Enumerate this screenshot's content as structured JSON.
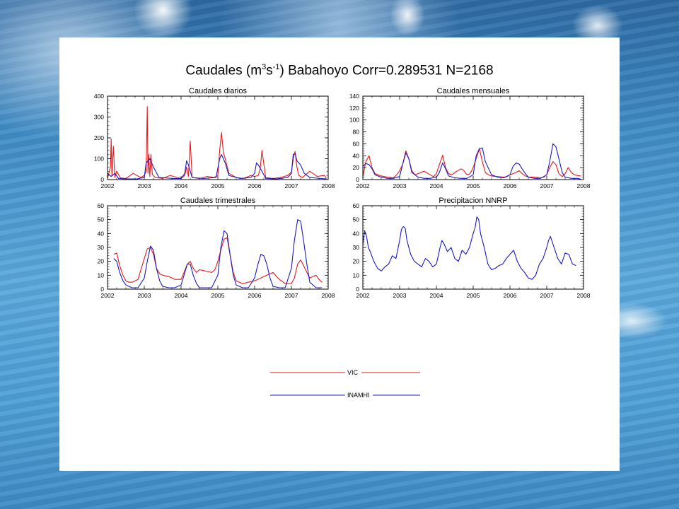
{
  "title": {
    "prefix": "Caudales (m",
    "sup1": "3",
    "mid": "s",
    "sup2": "-1",
    "suffix": ") Babahoyo Corr=0.289531 N=2168"
  },
  "colors": {
    "vic": "#e8191b",
    "inamhi": "#1a1ac8"
  },
  "legend": {
    "vic": "VIC",
    "inamhi": "INAMHI"
  },
  "chart_data": [
    {
      "type": "line",
      "title": "Caudales diarios",
      "xlim": [
        2002,
        2008
      ],
      "ylim": [
        0,
        400
      ],
      "xticks": [
        "2002",
        "2003",
        "2004",
        "2005",
        "2006",
        "2007",
        "2008"
      ],
      "yticks": [
        "0",
        "100",
        "200",
        "300",
        "400"
      ],
      "series": [
        {
          "name": "VIC",
          "x": [
            2002.0,
            2002.08,
            2002.1,
            2002.12,
            2002.16,
            2002.2,
            2002.25,
            2002.35,
            2002.5,
            2002.7,
            2002.9,
            2003.0,
            2003.05,
            2003.08,
            2003.1,
            2003.12,
            2003.15,
            2003.18,
            2003.22,
            2003.3,
            2003.5,
            2003.7,
            2003.9,
            2004.0,
            2004.1,
            2004.15,
            2004.2,
            2004.25,
            2004.3,
            2004.5,
            2004.7,
            2004.9,
            2005.0,
            2005.05,
            2005.1,
            2005.15,
            2005.2,
            2005.3,
            2005.5,
            2005.7,
            2005.9,
            2006.0,
            2006.1,
            2006.15,
            2006.2,
            2006.3,
            2006.5,
            2006.7,
            2006.9,
            2007.0,
            2007.05,
            2007.1,
            2007.15,
            2007.2,
            2007.3,
            2007.5,
            2007.7,
            2007.9,
            2007.95
          ],
          "y": [
            5,
            60,
            195,
            20,
            160,
            10,
            40,
            8,
            5,
            30,
            10,
            20,
            40,
            350,
            30,
            120,
            15,
            120,
            25,
            10,
            5,
            20,
            10,
            5,
            20,
            60,
            15,
            185,
            10,
            5,
            15,
            10,
            20,
            140,
            225,
            130,
            100,
            30,
            10,
            5,
            20,
            15,
            20,
            50,
            140,
            10,
            5,
            10,
            20,
            35,
            100,
            135,
            60,
            20,
            10,
            40,
            15,
            20,
            5
          ]
        },
        {
          "name": "INAMHI",
          "x": [
            2002.0,
            2002.1,
            2002.2,
            2002.3,
            2002.5,
            2002.8,
            2003.0,
            2003.05,
            2003.15,
            2003.25,
            2003.4,
            2003.8,
            2004.0,
            2004.1,
            2004.15,
            2004.2,
            2004.3,
            2004.6,
            2004.95,
            2005.05,
            2005.1,
            2005.2,
            2005.3,
            2005.6,
            2005.9,
            2006.0,
            2006.05,
            2006.1,
            2006.2,
            2006.3,
            2006.6,
            2006.9,
            2007.0,
            2007.05,
            2007.1,
            2007.15,
            2007.25,
            2007.35,
            2007.5,
            2007.8,
            2007.95
          ],
          "y": [
            30,
            15,
            30,
            5,
            3,
            3,
            10,
            80,
            100,
            60,
            10,
            5,
            5,
            30,
            90,
            70,
            10,
            5,
            10,
            100,
            120,
            80,
            20,
            5,
            10,
            30,
            80,
            70,
            40,
            5,
            3,
            10,
            30,
            120,
            125,
            90,
            70,
            30,
            10,
            5,
            3
          ]
        }
      ]
    },
    {
      "type": "line",
      "title": "Caudales mensuales",
      "xlim": [
        2002,
        2008
      ],
      "ylim": [
        0,
        140
      ],
      "xticks": [
        "2002",
        "2003",
        "2004",
        "2005",
        "2006",
        "2007",
        "2008"
      ],
      "yticks": [
        "0",
        "20",
        "40",
        "60",
        "80",
        "100",
        "120",
        "140"
      ],
      "series": [
        {
          "name": "VIC",
          "x": [
            2002.0,
            2002.08,
            2002.17,
            2002.25,
            2002.33,
            2002.42,
            2002.5,
            2002.67,
            2002.83,
            2002.92,
            2003.0,
            2003.08,
            2003.17,
            2003.25,
            2003.33,
            2003.42,
            2003.5,
            2003.67,
            2003.83,
            2003.92,
            2004.0,
            2004.08,
            2004.17,
            2004.25,
            2004.33,
            2004.42,
            2004.5,
            2004.67,
            2004.75,
            2004.83,
            2004.92,
            2005.0,
            2005.08,
            2005.17,
            2005.25,
            2005.33,
            2005.42,
            2005.5,
            2005.67,
            2005.83,
            2005.92,
            2006.0,
            2006.08,
            2006.17,
            2006.25,
            2006.33,
            2006.42,
            2006.5,
            2006.67,
            2006.83,
            2006.92,
            2007.0,
            2007.08,
            2007.17,
            2007.25,
            2007.33,
            2007.42,
            2007.5,
            2007.58,
            2007.67,
            2007.75,
            2007.92
          ],
          "y": [
            5,
            30,
            40,
            20,
            10,
            8,
            6,
            4,
            3,
            8,
            15,
            25,
            48,
            35,
            15,
            8,
            10,
            14,
            8,
            5,
            10,
            25,
            41,
            20,
            10,
            8,
            12,
            18,
            15,
            8,
            10,
            20,
            35,
            52,
            30,
            12,
            8,
            6,
            5,
            4,
            5,
            8,
            10,
            12,
            15,
            10,
            6,
            4,
            4,
            3,
            4,
            8,
            20,
            30,
            25,
            10,
            5,
            10,
            20,
            12,
            8,
            6
          ]
        },
        {
          "name": "INAMHI",
          "x": [
            2002.0,
            2002.08,
            2002.17,
            2002.25,
            2002.33,
            2002.5,
            2002.67,
            2002.83,
            2003.0,
            2003.08,
            2003.17,
            2003.25,
            2003.33,
            2003.5,
            2003.67,
            2003.83,
            2004.0,
            2004.08,
            2004.17,
            2004.25,
            2004.33,
            2004.5,
            2004.67,
            2004.83,
            2005.0,
            2005.08,
            2005.17,
            2005.25,
            2005.33,
            2005.5,
            2005.67,
            2005.83,
            2006.0,
            2006.08,
            2006.17,
            2006.25,
            2006.33,
            2006.42,
            2006.5,
            2006.67,
            2006.83,
            2007.0,
            2007.08,
            2007.17,
            2007.25,
            2007.33,
            2007.42,
            2007.5,
            2007.67,
            2007.83,
            2007.92
          ],
          "y": [
            22,
            27,
            25,
            18,
            8,
            4,
            2,
            2,
            5,
            25,
            45,
            35,
            12,
            4,
            2,
            2,
            4,
            12,
            28,
            18,
            6,
            3,
            2,
            2,
            8,
            40,
            52,
            53,
            30,
            8,
            4,
            3,
            8,
            22,
            28,
            26,
            18,
            10,
            4,
            2,
            2,
            8,
            30,
            60,
            55,
            35,
            12,
            4,
            2,
            2,
            1
          ]
        }
      ]
    },
    {
      "type": "line",
      "title": "Caudales trimestrales",
      "xlim": [
        2002,
        2008
      ],
      "ylim": [
        0,
        60
      ],
      "xticks": [
        "2002",
        "2003",
        "2004",
        "2005",
        "2006",
        "2007",
        "2008"
      ],
      "yticks": [
        "0",
        "10",
        "20",
        "30",
        "40",
        "50",
        "60"
      ],
      "series": [
        {
          "name": "VIC",
          "x": [
            2002.17,
            2002.25,
            2002.33,
            2002.42,
            2002.5,
            2002.58,
            2002.67,
            2002.83,
            2002.92,
            2003.0,
            2003.08,
            2003.17,
            2003.25,
            2003.33,
            2003.42,
            2003.5,
            2003.67,
            2003.83,
            2004.0,
            2004.08,
            2004.17,
            2004.25,
            2004.33,
            2004.42,
            2004.5,
            2004.67,
            2004.83,
            2004.92,
            2005.0,
            2005.08,
            2005.17,
            2005.25,
            2005.33,
            2005.42,
            2005.5,
            2005.67,
            2005.83,
            2006.0,
            2006.17,
            2006.33,
            2006.5,
            2006.67,
            2006.83,
            2007.0,
            2007.08,
            2007.17,
            2007.25,
            2007.33,
            2007.42,
            2007.5,
            2007.58,
            2007.67,
            2007.75,
            2007.83
          ],
          "y": [
            25,
            26,
            17,
            10,
            6,
            5,
            5,
            7,
            15,
            22,
            29,
            30,
            25,
            15,
            11,
            10,
            9,
            7,
            7,
            12,
            18,
            20,
            15,
            12,
            14,
            13,
            12,
            14,
            20,
            28,
            36,
            37,
            25,
            12,
            6,
            4,
            5,
            6,
            8,
            10,
            12,
            7,
            4,
            4,
            8,
            18,
            21,
            17,
            12,
            8,
            9,
            10,
            7,
            5
          ]
        },
        {
          "name": "INAMHI",
          "x": [
            2002.17,
            2002.25,
            2002.33,
            2002.42,
            2002.5,
            2002.58,
            2002.67,
            2002.83,
            2003.0,
            2003.08,
            2003.17,
            2003.25,
            2003.33,
            2003.42,
            2003.5,
            2003.67,
            2003.83,
            2004.0,
            2004.08,
            2004.17,
            2004.25,
            2004.33,
            2004.42,
            2004.5,
            2004.67,
            2004.83,
            2005.0,
            2005.08,
            2005.17,
            2005.25,
            2005.33,
            2005.42,
            2005.5,
            2005.67,
            2005.83,
            2006.0,
            2006.08,
            2006.17,
            2006.25,
            2006.33,
            2006.42,
            2006.5,
            2006.67,
            2006.83,
            2007.0,
            2007.08,
            2007.17,
            2007.25,
            2007.33,
            2007.42,
            2007.5,
            2007.67,
            2007.83
          ],
          "y": [
            22,
            20,
            12,
            6,
            3,
            2,
            1,
            1,
            8,
            20,
            31,
            28,
            15,
            6,
            2,
            1,
            1,
            3,
            10,
            18,
            18,
            10,
            4,
            1,
            1,
            1,
            10,
            30,
            42,
            40,
            25,
            10,
            3,
            1,
            1,
            8,
            17,
            25,
            24,
            18,
            8,
            2,
            1,
            1,
            15,
            35,
            50,
            49,
            35,
            18,
            5,
            1,
            1
          ]
        }
      ]
    },
    {
      "type": "line",
      "title": "Precipitacion NNRP",
      "xlim": [
        2002,
        2008
      ],
      "ylim": [
        0,
        60
      ],
      "xticks": [
        "2002",
        "2003",
        "2004",
        "2005",
        "2006",
        "2007",
        "2008"
      ],
      "yticks": [
        "0",
        "10",
        "20",
        "30",
        "40",
        "50",
        "60"
      ],
      "series": [
        {
          "name": "INAMHI",
          "x": [
            2002.0,
            2002.05,
            2002.1,
            2002.15,
            2002.2,
            2002.3,
            2002.4,
            2002.5,
            2002.6,
            2002.7,
            2002.8,
            2002.9,
            2003.0,
            2003.05,
            2003.1,
            2003.15,
            2003.2,
            2003.3,
            2003.4,
            2003.5,
            2003.6,
            2003.7,
            2003.8,
            2003.9,
            2004.0,
            2004.1,
            2004.15,
            2004.2,
            2004.3,
            2004.4,
            2004.5,
            2004.6,
            2004.7,
            2004.8,
            2004.9,
            2005.0,
            2005.05,
            2005.1,
            2005.15,
            2005.2,
            2005.3,
            2005.4,
            2005.5,
            2005.6,
            2005.7,
            2005.8,
            2005.9,
            2006.0,
            2006.1,
            2006.2,
            2006.3,
            2006.4,
            2006.5,
            2006.6,
            2006.7,
            2006.8,
            2006.9,
            2007.0,
            2007.05,
            2007.1,
            2007.2,
            2007.3,
            2007.4,
            2007.5,
            2007.6,
            2007.7,
            2007.8
          ],
          "y": [
            32,
            42,
            38,
            30,
            27,
            20,
            15,
            13,
            16,
            18,
            24,
            22,
            35,
            43,
            45,
            44,
            35,
            25,
            20,
            18,
            16,
            22,
            20,
            16,
            18,
            30,
            35,
            33,
            27,
            30,
            22,
            20,
            28,
            25,
            30,
            40,
            44,
            52,
            50,
            40,
            30,
            18,
            14,
            15,
            17,
            18,
            22,
            25,
            28,
            20,
            15,
            12,
            8,
            7,
            10,
            18,
            22,
            30,
            35,
            38,
            30,
            22,
            18,
            26,
            25,
            18,
            17
          ]
        }
      ]
    }
  ]
}
